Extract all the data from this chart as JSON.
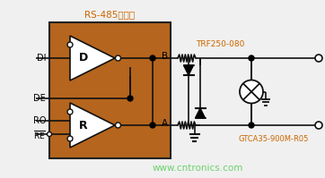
{
  "bg_color": "#f0f0f0",
  "box_color": "#b5651d",
  "box_edge": "#222222",
  "title_text": "RS-485收发器",
  "title_color": "#cc6600",
  "label_di": "DI",
  "label_de": "DE",
  "label_ro": "RO",
  "label_re": "RE",
  "label_b": "B",
  "label_a": "A",
  "label_trf": "TRF250-080",
  "label_gtca": "GTCA35-900M-R05",
  "label_trf_color": "#cc6600",
  "label_gtca_color": "#cc6600",
  "watermark": "www.cntronics.com",
  "watermark_color": "#55cc55",
  "line_color": "#111111",
  "white": "#ffffff",
  "black": "#000000"
}
